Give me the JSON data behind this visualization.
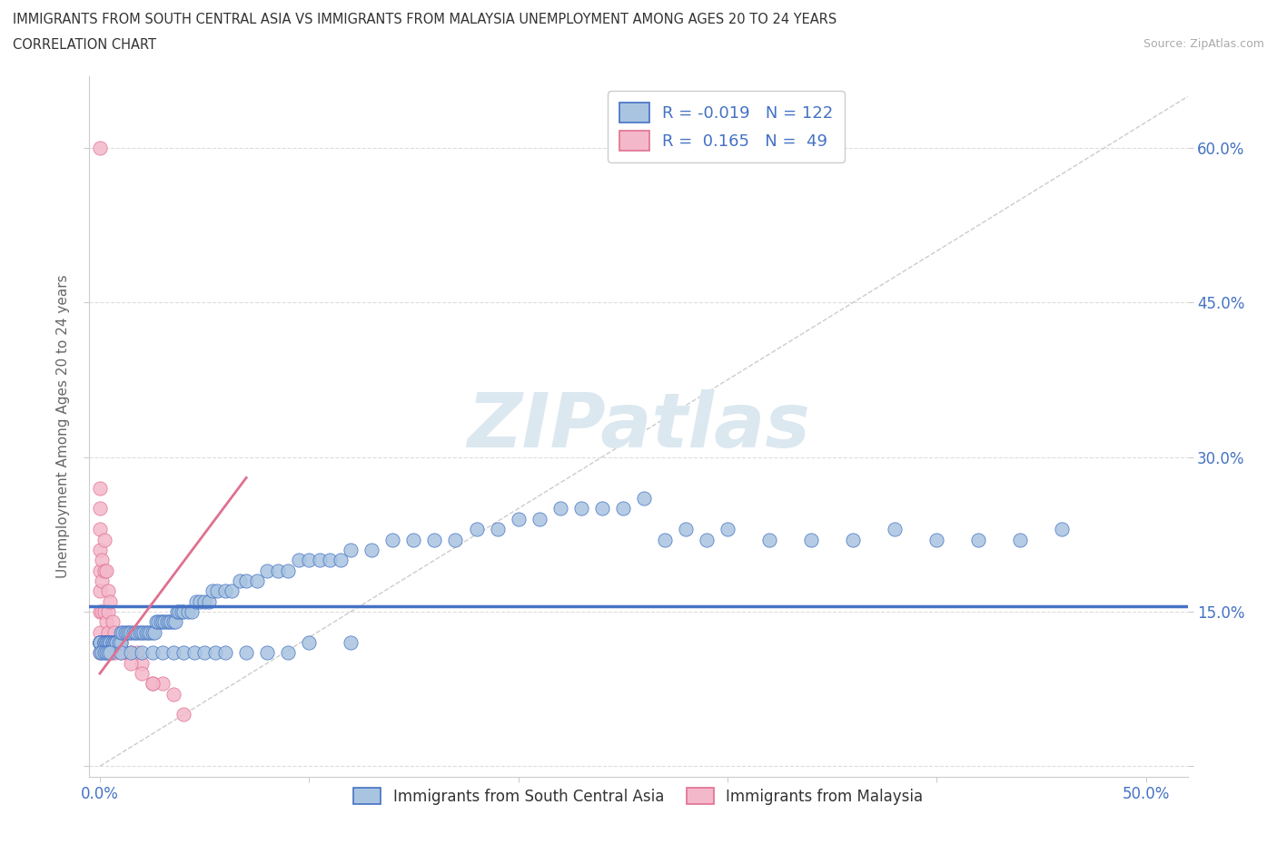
{
  "title_line1": "IMMIGRANTS FROM SOUTH CENTRAL ASIA VS IMMIGRANTS FROM MALAYSIA UNEMPLOYMENT AMONG AGES 20 TO 24 YEARS",
  "title_line2": "CORRELATION CHART",
  "source_text": "Source: ZipAtlas.com",
  "ylabel": "Unemployment Among Ages 20 to 24 years",
  "xlim": [
    -0.005,
    0.52
  ],
  "ylim": [
    -0.01,
    0.67
  ],
  "xtick_vals": [
    0.0,
    0.1,
    0.2,
    0.3,
    0.4,
    0.5
  ],
  "xticklabels": [
    "0.0%",
    "",
    "",
    "",
    "",
    "50.0%"
  ],
  "ytick_vals": [
    0.0,
    0.15,
    0.3,
    0.45,
    0.6
  ],
  "yticklabels": [
    "",
    "15.0%",
    "30.0%",
    "45.0%",
    "60.0%"
  ],
  "color_blue_fill": "#a8c4e0",
  "color_blue_edge": "#4472c4",
  "color_pink_fill": "#f4b8cb",
  "color_pink_edge": "#e07090",
  "color_blue_text": "#4472c4",
  "watermark_text": "ZIPatlas",
  "watermark_color": "#dce8f0",
  "diag_line_color": "#cccccc",
  "grid_color": "#dddddd",
  "blue_trend_y": 0.125,
  "pink_trend_x0": 0.0,
  "pink_trend_y0": 0.09,
  "pink_trend_x1": 0.07,
  "pink_trend_y1": 0.28,
  "source_color": "#aaaaaa",
  "legend_label1": "R = -0.019   N = 122",
  "legend_label2": "R =  0.165   N =  49",
  "bottom_label1": "Immigrants from South Central Asia",
  "bottom_label2": "Immigrants from Malaysia",
  "blue_x": [
    0.0,
    0.0,
    0.0,
    0.0,
    0.0,
    0.0,
    0.0,
    0.0,
    0.002,
    0.002,
    0.002,
    0.003,
    0.003,
    0.004,
    0.004,
    0.005,
    0.005,
    0.006,
    0.006,
    0.007,
    0.007,
    0.008,
    0.008,
    0.009,
    0.01,
    0.01,
    0.011,
    0.012,
    0.013,
    0.014,
    0.015,
    0.016,
    0.017,
    0.018,
    0.019,
    0.02,
    0.021,
    0.022,
    0.023,
    0.024,
    0.025,
    0.026,
    0.027,
    0.028,
    0.029,
    0.03,
    0.031,
    0.032,
    0.033,
    0.034,
    0.035,
    0.036,
    0.037,
    0.038,
    0.039,
    0.04,
    0.042,
    0.044,
    0.046,
    0.048,
    0.05,
    0.052,
    0.054,
    0.056,
    0.06,
    0.063,
    0.067,
    0.07,
    0.075,
    0.08,
    0.085,
    0.09,
    0.095,
    0.1,
    0.105,
    0.11,
    0.115,
    0.12,
    0.13,
    0.14,
    0.15,
    0.16,
    0.17,
    0.18,
    0.19,
    0.2,
    0.21,
    0.22,
    0.23,
    0.24,
    0.25,
    0.26,
    0.27,
    0.28,
    0.29,
    0.3,
    0.32,
    0.34,
    0.36,
    0.38,
    0.4,
    0.42,
    0.44,
    0.46,
    0.0,
    0.001,
    0.002,
    0.003,
    0.004,
    0.005,
    0.01,
    0.015,
    0.02,
    0.025,
    0.03,
    0.035,
    0.04,
    0.045,
    0.05,
    0.055,
    0.06,
    0.07,
    0.08,
    0.09,
    0.1,
    0.12
  ],
  "blue_y": [
    0.12,
    0.12,
    0.12,
    0.12,
    0.12,
    0.12,
    0.12,
    0.12,
    0.12,
    0.12,
    0.12,
    0.12,
    0.12,
    0.12,
    0.12,
    0.12,
    0.12,
    0.12,
    0.12,
    0.12,
    0.12,
    0.12,
    0.12,
    0.12,
    0.12,
    0.13,
    0.13,
    0.13,
    0.13,
    0.13,
    0.13,
    0.13,
    0.13,
    0.13,
    0.13,
    0.13,
    0.13,
    0.13,
    0.13,
    0.13,
    0.13,
    0.13,
    0.14,
    0.14,
    0.14,
    0.14,
    0.14,
    0.14,
    0.14,
    0.14,
    0.14,
    0.14,
    0.15,
    0.15,
    0.15,
    0.15,
    0.15,
    0.15,
    0.16,
    0.16,
    0.16,
    0.16,
    0.17,
    0.17,
    0.17,
    0.17,
    0.18,
    0.18,
    0.18,
    0.19,
    0.19,
    0.19,
    0.2,
    0.2,
    0.2,
    0.2,
    0.2,
    0.21,
    0.21,
    0.22,
    0.22,
    0.22,
    0.22,
    0.23,
    0.23,
    0.24,
    0.24,
    0.25,
    0.25,
    0.25,
    0.25,
    0.26,
    0.22,
    0.23,
    0.22,
    0.23,
    0.22,
    0.22,
    0.22,
    0.23,
    0.22,
    0.22,
    0.22,
    0.23,
    0.11,
    0.11,
    0.11,
    0.11,
    0.11,
    0.11,
    0.11,
    0.11,
    0.11,
    0.11,
    0.11,
    0.11,
    0.11,
    0.11,
    0.11,
    0.11,
    0.11,
    0.11,
    0.11,
    0.11,
    0.12,
    0.12
  ],
  "pink_x": [
    0.0,
    0.0,
    0.0,
    0.0,
    0.0,
    0.0,
    0.0,
    0.0,
    0.0,
    0.0,
    0.0,
    0.001,
    0.001,
    0.001,
    0.002,
    0.002,
    0.002,
    0.003,
    0.003,
    0.004,
    0.004,
    0.004,
    0.005,
    0.005,
    0.006,
    0.007,
    0.008,
    0.009,
    0.01,
    0.012,
    0.015,
    0.018,
    0.02,
    0.025,
    0.03,
    0.035,
    0.04,
    0.0,
    0.001,
    0.002,
    0.003,
    0.004,
    0.005,
    0.006,
    0.007,
    0.01,
    0.015,
    0.02,
    0.025
  ],
  "pink_y": [
    0.6,
    0.27,
    0.25,
    0.23,
    0.21,
    0.19,
    0.17,
    0.15,
    0.13,
    0.12,
    0.11,
    0.2,
    0.18,
    0.15,
    0.22,
    0.19,
    0.15,
    0.19,
    0.14,
    0.17,
    0.15,
    0.13,
    0.16,
    0.12,
    0.14,
    0.13,
    0.12,
    0.12,
    0.12,
    0.11,
    0.11,
    0.11,
    0.1,
    0.08,
    0.08,
    0.07,
    0.05,
    0.12,
    0.12,
    0.12,
    0.12,
    0.12,
    0.12,
    0.11,
    0.11,
    0.11,
    0.1,
    0.09,
    0.08
  ]
}
